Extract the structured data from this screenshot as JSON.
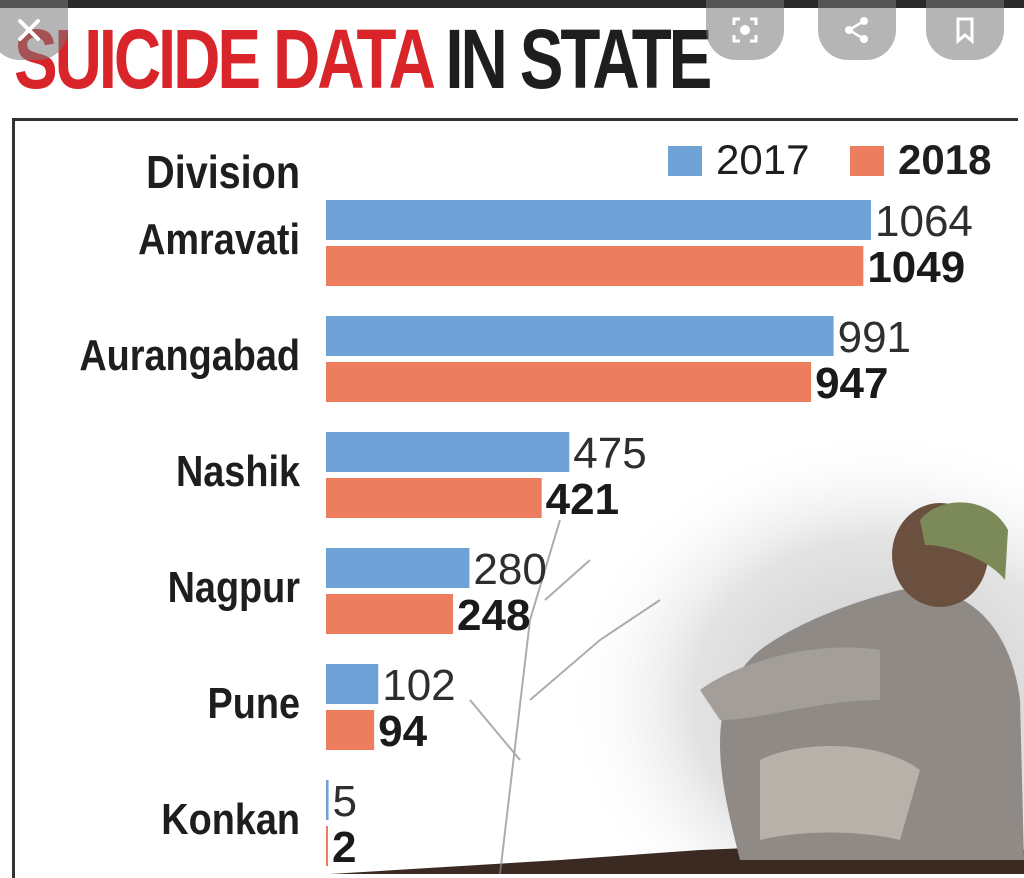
{
  "title": {
    "part1": "SUICIDE DATA",
    "part2": "IN STATE"
  },
  "overlay_icons": [
    "close-icon",
    "lens-search-icon",
    "share-icon",
    "bookmark-icon"
  ],
  "colors": {
    "series_2017": "#6fa3d8",
    "series_2018": "#ec7d5f",
    "title_red": "#d9252a"
  },
  "chart_data": {
    "type": "bar",
    "orientation": "horizontal",
    "category_header": "Division",
    "categories": [
      "Amravati",
      "Aurangabad",
      "Nashik",
      "Nagpur",
      "Pune",
      "Konkan"
    ],
    "series": [
      {
        "name": "2017",
        "values": [
          1064,
          991,
          475,
          280,
          102,
          5
        ]
      },
      {
        "name": "2018",
        "values": [
          1049,
          947,
          421,
          248,
          94,
          2
        ]
      }
    ],
    "legend_position": "top-right"
  }
}
